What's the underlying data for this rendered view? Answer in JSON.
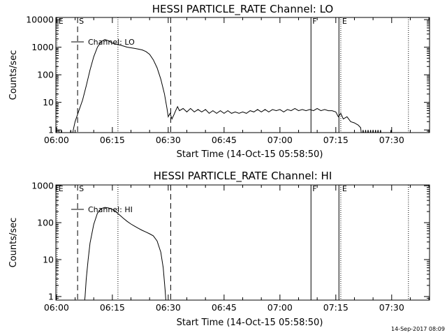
{
  "footer": {
    "timestamp": "14-Sep-2017 08:09"
  },
  "chart_data": [
    {
      "type": "line",
      "title": "HESSI PARTICLE_RATE Channel: LO",
      "xlabel": "Start Time (14-Oct-15 05:58:50)",
      "ylabel": "Counts/sec",
      "yscale": "log",
      "ylim": [
        0.8,
        12000
      ],
      "xlim": [
        "05:59:50",
        "07:40:10"
      ],
      "xticks": [
        "06:00",
        "06:15",
        "06:30",
        "06:45",
        "07:00",
        "07:15",
        "07:30"
      ],
      "yticks": [
        "1",
        "10",
        "100",
        "1000",
        "10000"
      ],
      "legend": {
        "position": "top-left",
        "entries": [
          "Channel: LO"
        ]
      },
      "markers": [
        {
          "label": "E",
          "time": "06:00:10",
          "style": "dotted"
        },
        {
          "label": "S",
          "time": "06:05:40",
          "style": "dashed"
        },
        {
          "label": "",
          "time": "06:16:30",
          "style": "dotted"
        },
        {
          "label": "",
          "time": "06:30:40",
          "style": "dashed"
        },
        {
          "label": "F",
          "time": "07:08:20",
          "style": "solid"
        },
        {
          "label": "",
          "time": "07:15:50",
          "style": "solid"
        },
        {
          "label": "E",
          "time": "07:16:20",
          "style": "dotted"
        },
        {
          "label": "",
          "time": "07:34:30",
          "style": "dotted"
        }
      ],
      "series": [
        {
          "name": "Channel: LO",
          "points": [
            [
              "06:00:40",
              1
            ],
            [
              "06:01:00",
              0.5
            ],
            [
              "06:01:20",
              1
            ],
            [
              "06:01:40",
              0.5
            ],
            [
              "06:03:30",
              0.5
            ],
            [
              "06:03:50",
              1
            ],
            [
              "06:04:10",
              0.5
            ],
            [
              "06:04:30",
              1
            ],
            [
              "06:05:00",
              2
            ],
            [
              "06:06:00",
              5
            ],
            [
              "06:07:00",
              12
            ],
            [
              "06:08:00",
              40
            ],
            [
              "06:09:00",
              150
            ],
            [
              "06:10:00",
              450
            ],
            [
              "06:11:00",
              1000
            ],
            [
              "06:12:00",
              1600
            ],
            [
              "06:13:00",
              1900
            ],
            [
              "06:14:00",
              1700
            ],
            [
              "06:15:00",
              1400
            ],
            [
              "06:16:00",
              1300
            ],
            [
              "06:17:00",
              1200
            ],
            [
              "06:18:00",
              1100
            ],
            [
              "06:19:00",
              1000
            ],
            [
              "06:20:00",
              950
            ],
            [
              "06:21:00",
              900
            ],
            [
              "06:22:00",
              850
            ],
            [
              "06:23:00",
              800
            ],
            [
              "06:24:00",
              700
            ],
            [
              "06:25:00",
              550
            ],
            [
              "06:26:00",
              350
            ],
            [
              "06:27:00",
              180
            ],
            [
              "06:28:00",
              70
            ],
            [
              "06:29:00",
              20
            ],
            [
              "06:29:40",
              6
            ],
            [
              "06:30:00",
              3
            ],
            [
              "06:30:30",
              4
            ],
            [
              "06:31:00",
              2.5
            ],
            [
              "06:31:30",
              3.5
            ],
            [
              "06:32:00",
              5
            ],
            [
              "06:32:30",
              7
            ],
            [
              "06:33:00",
              5
            ],
            [
              "06:34:00",
              6
            ],
            [
              "06:35:00",
              4.5
            ],
            [
              "06:36:00",
              6
            ],
            [
              "06:37:00",
              4.5
            ],
            [
              "06:38:00",
              5.5
            ],
            [
              "06:39:00",
              4.5
            ],
            [
              "06:40:00",
              5.5
            ],
            [
              "06:41:00",
              4
            ],
            [
              "06:42:00",
              5
            ],
            [
              "06:43:00",
              4
            ],
            [
              "06:44:00",
              5
            ],
            [
              "06:45:00",
              4
            ],
            [
              "06:46:00",
              5
            ],
            [
              "06:47:00",
              4
            ],
            [
              "06:48:00",
              4.5
            ],
            [
              "06:49:00",
              4
            ],
            [
              "06:50:00",
              4.5
            ],
            [
              "06:51:00",
              4
            ],
            [
              "06:52:00",
              5
            ],
            [
              "06:53:00",
              4.5
            ],
            [
              "06:54:00",
              5.5
            ],
            [
              "06:55:00",
              4.5
            ],
            [
              "06:56:00",
              5.5
            ],
            [
              "06:57:00",
              4.5
            ],
            [
              "06:58:00",
              5.5
            ],
            [
              "06:59:00",
              5
            ],
            [
              "07:00:00",
              5.5
            ],
            [
              "07:01:00",
              4.5
            ],
            [
              "07:02:00",
              5.5
            ],
            [
              "07:03:00",
              5
            ],
            [
              "07:04:00",
              6
            ],
            [
              "07:05:00",
              5
            ],
            [
              "07:06:00",
              5.5
            ],
            [
              "07:07:00",
              5
            ],
            [
              "07:08:00",
              5.5
            ],
            [
              "07:09:00",
              5
            ],
            [
              "07:10:00",
              6
            ],
            [
              "07:11:00",
              5
            ],
            [
              "07:12:00",
              5.5
            ],
            [
              "07:13:00",
              5
            ],
            [
              "07:14:00",
              5
            ],
            [
              "07:15:00",
              4.5
            ],
            [
              "07:15:40",
              3
            ],
            [
              "07:16:20",
              4
            ],
            [
              "07:17:00",
              2.5
            ],
            [
              "07:18:00",
              3
            ],
            [
              "07:19:00",
              2
            ],
            [
              "07:20:00",
              1.8
            ],
            [
              "07:21:00",
              1.5
            ],
            [
              "07:21:40",
              1.2
            ],
            [
              "07:22:00",
              0.5
            ],
            [
              "07:22:20",
              1
            ],
            [
              "07:22:40",
              0.5
            ],
            [
              "07:23:00",
              1
            ],
            [
              "07:23:20",
              0.5
            ],
            [
              "07:23:40",
              1
            ],
            [
              "07:24:00",
              0.5
            ],
            [
              "07:24:20",
              1
            ],
            [
              "07:24:40",
              0.5
            ],
            [
              "07:25:00",
              1
            ],
            [
              "07:25:20",
              0.5
            ],
            [
              "07:25:40",
              1
            ],
            [
              "07:26:00",
              0.5
            ],
            [
              "07:26:20",
              1
            ],
            [
              "07:26:40",
              0.5
            ],
            [
              "07:27:00",
              1
            ],
            [
              "07:27:20",
              0.5
            ],
            [
              "07:29:30",
              0.5
            ],
            [
              "07:29:50",
              1
            ],
            [
              "07:30:10",
              0.5
            ]
          ]
        }
      ]
    },
    {
      "type": "line",
      "title": "HESSI PARTICLE_RATE Channel: HI",
      "xlabel": "Start Time (14-Oct-15 05:58:50)",
      "ylabel": "Counts/sec",
      "yscale": "log",
      "ylim": [
        0.8,
        1050
      ],
      "xlim": [
        "05:59:50",
        "07:40:10"
      ],
      "xticks": [
        "06:00",
        "06:15",
        "06:30",
        "06:45",
        "07:00",
        "07:15",
        "07:30"
      ],
      "yticks": [
        "1",
        "10",
        "100",
        "1000"
      ],
      "legend": {
        "position": "top-left",
        "entries": [
          "Channel: HI"
        ]
      },
      "markers": [
        {
          "label": "E",
          "time": "06:00:10",
          "style": "dotted"
        },
        {
          "label": "S",
          "time": "06:05:40",
          "style": "dashed"
        },
        {
          "label": "",
          "time": "06:16:30",
          "style": "dotted"
        },
        {
          "label": "",
          "time": "06:30:40",
          "style": "dashed"
        },
        {
          "label": "F",
          "time": "07:08:20",
          "style": "solid"
        },
        {
          "label": "",
          "time": "07:15:50",
          "style": "solid"
        },
        {
          "label": "E",
          "time": "07:16:20",
          "style": "dotted"
        },
        {
          "label": "",
          "time": "07:34:30",
          "style": "dotted"
        }
      ],
      "series": [
        {
          "name": "Channel: HI",
          "points": [
            [
              "06:07:20",
              0.5
            ],
            [
              "06:07:40",
              1
            ],
            [
              "06:08:00",
              3
            ],
            [
              "06:08:30",
              10
            ],
            [
              "06:09:00",
              28
            ],
            [
              "06:10:00",
              90
            ],
            [
              "06:11:00",
              180
            ],
            [
              "06:12:00",
              240
            ],
            [
              "06:13:00",
              260
            ],
            [
              "06:14:00",
              250
            ],
            [
              "06:15:00",
              230
            ],
            [
              "06:16:00",
              195
            ],
            [
              "06:17:00",
              160
            ],
            [
              "06:18:00",
              130
            ],
            [
              "06:19:00",
              108
            ],
            [
              "06:20:00",
              92
            ],
            [
              "06:21:00",
              80
            ],
            [
              "06:22:00",
              70
            ],
            [
              "06:23:00",
              62
            ],
            [
              "06:24:00",
              56
            ],
            [
              "06:25:00",
              50
            ],
            [
              "06:26:00",
              44
            ],
            [
              "06:27:00",
              32
            ],
            [
              "06:28:00",
              16
            ],
            [
              "06:28:40",
              6
            ],
            [
              "06:29:10",
              1.5
            ],
            [
              "06:29:30",
              0.5
            ]
          ]
        }
      ]
    }
  ]
}
